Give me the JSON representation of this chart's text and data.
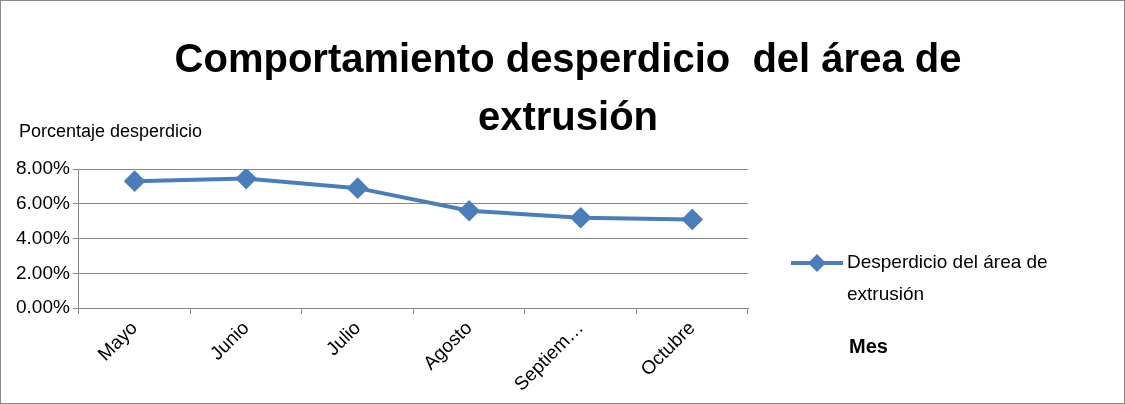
{
  "chart_data": {
    "type": "line",
    "title": "Comportamiento desperdicio  del área de extrusión",
    "ylabel": "Porcentaje desperdicio",
    "annotations": [
      "Mes"
    ],
    "categories": [
      "Mayo",
      "Junio",
      "Julio",
      "Agosto",
      "Septiem…",
      "Octubre"
    ],
    "series": [
      {
        "name": "Desperdicio del área de extrusión",
        "color": "#4a7ebb",
        "values": [
          7.3,
          7.45,
          6.9,
          5.6,
          5.2,
          5.1
        ]
      }
    ],
    "ylim": [
      0,
      8
    ],
    "yticks": [
      {
        "value": 0,
        "label": "0.00%"
      },
      {
        "value": 2,
        "label": "2.00%"
      },
      {
        "value": 4,
        "label": "4.00%"
      },
      {
        "value": 6,
        "label": "6.00%"
      },
      {
        "value": 8,
        "label": "8.00%"
      }
    ],
    "grid": "y",
    "legend": "right",
    "marker": "diamond",
    "line_style": "solid"
  }
}
